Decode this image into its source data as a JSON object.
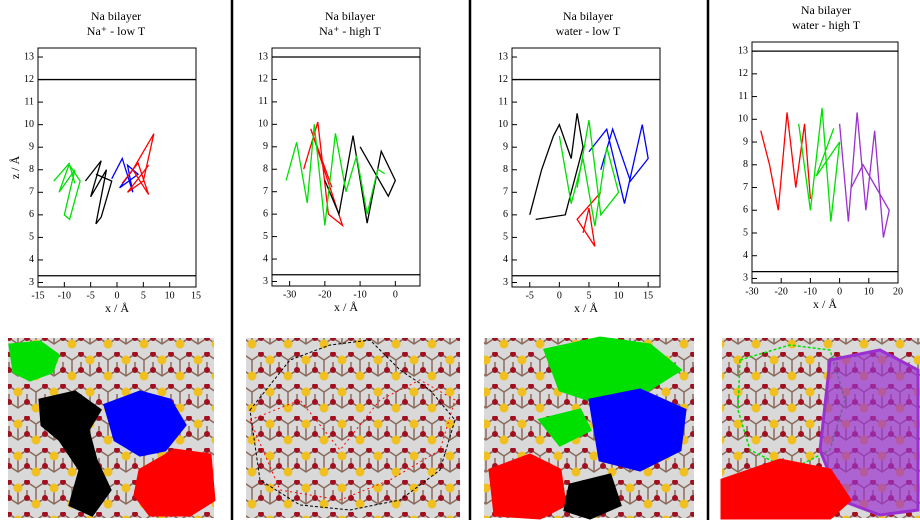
{
  "chart_data": [
    {
      "type": "line",
      "title": "Na bilayer",
      "subtitle": "Na⁺ - low T",
      "xlabel": "x / Å",
      "ylabel": "z / Å",
      "xlim": [
        -15,
        15
      ],
      "xticks": [
        -15,
        -10,
        -5,
        0,
        5,
        10,
        15
      ],
      "ylim": [
        2.8,
        13.4
      ],
      "yticks": [
        3,
        4,
        5,
        6,
        7,
        8,
        9,
        10,
        11,
        12,
        13
      ],
      "hlines": [
        12,
        3.3
      ],
      "series": [
        {
          "color": "#00e000",
          "x": [
            -12,
            -9,
            -11,
            -8,
            -10,
            -9,
            -7,
            -9,
            -8
          ],
          "values": [
            7.5,
            8.3,
            7,
            8,
            6,
            5.8,
            7.5,
            8.2,
            7.4
          ]
        },
        {
          "color": "#000000",
          "x": [
            -6,
            -3,
            -5,
            -2,
            -4,
            -3,
            -1,
            -4
          ],
          "values": [
            7.5,
            8.4,
            6.8,
            8,
            5.6,
            5.9,
            7.5,
            7.8
          ]
        },
        {
          "color": "#0000ff",
          "x": [
            -1,
            1,
            3,
            2,
            4,
            0.5,
            3
          ],
          "values": [
            7.6,
            8.5,
            7,
            8.2,
            7.8,
            7.2,
            8
          ]
        },
        {
          "color": "#ff0000",
          "x": [
            1,
            4,
            6,
            3,
            7,
            5,
            2,
            6
          ],
          "values": [
            7.4,
            8.3,
            6.9,
            8,
            9.6,
            7.5,
            7,
            8.2
          ]
        }
      ]
    },
    {
      "type": "line",
      "title": "Na bilayer",
      "subtitle": "Na⁺ - high T",
      "xlabel": "x / Å",
      "xlim": [
        -35,
        7
      ],
      "xticks": [
        -30,
        -20,
        -10,
        0
      ],
      "ylim": [
        2.8,
        13.4
      ],
      "yticks": [
        3,
        4,
        5,
        6,
        7,
        8,
        9,
        10,
        11,
        12,
        13
      ],
      "hlines": [
        13,
        3.3
      ],
      "series": [
        {
          "color": "#ff0000",
          "x": [
            -26,
            -22,
            -19,
            -15,
            -24,
            -18
          ],
          "values": [
            8,
            10.1,
            6,
            5.5,
            9.8,
            7.2
          ]
        },
        {
          "color": "#000000",
          "x": [
            -20,
            -16,
            -12,
            -8,
            -4,
            0,
            -2,
            -10
          ],
          "values": [
            7.5,
            6,
            9.5,
            5.6,
            8.8,
            7.5,
            6.8,
            9
          ]
        },
        {
          "color": "#00e000",
          "x": [
            -31,
            -28,
            -25,
            -23,
            -20,
            -17,
            -14,
            -11,
            -8,
            -5,
            -3
          ],
          "values": [
            7.5,
            9.2,
            6.5,
            10,
            5.5,
            9.6,
            7,
            8.6,
            6,
            8,
            7.8
          ]
        }
      ]
    },
    {
      "type": "line",
      "title": "Na bilayer",
      "subtitle": "water - low T",
      "xlabel": "x / Å",
      "xlim": [
        -8,
        17
      ],
      "xticks": [
        -5,
        0,
        5,
        10,
        15
      ],
      "ylim": [
        2.8,
        13.4
      ],
      "yticks": [
        3,
        4,
        5,
        6,
        7,
        8,
        9,
        10,
        11,
        12,
        13
      ],
      "hlines": [
        12,
        3.3
      ],
      "series": [
        {
          "color": "#000000",
          "x": [
            -5,
            -3,
            -1,
            0,
            2,
            3,
            4,
            1,
            -4
          ],
          "values": [
            6,
            8,
            9.5,
            10,
            8.5,
            10.5,
            9,
            6,
            5.8
          ]
        },
        {
          "color": "#0000ff",
          "x": [
            5,
            8,
            11,
            14,
            15,
            12,
            9,
            7
          ],
          "values": [
            8.8,
            9.8,
            6.5,
            10,
            8.5,
            7.5,
            9.8,
            8
          ]
        },
        {
          "color": "#ff0000",
          "x": [
            4,
            5,
            6,
            3,
            7
          ],
          "values": [
            5.2,
            6.3,
            4.6,
            5.8,
            7
          ]
        },
        {
          "color": "#00e000",
          "x": [
            0,
            2,
            4,
            6,
            8,
            10,
            7,
            5,
            3
          ],
          "values": [
            9.5,
            6.5,
            8.5,
            5.5,
            9,
            7,
            6,
            10.2,
            7.2
          ]
        }
      ]
    },
    {
      "type": "line",
      "title": "Na bilayer",
      "subtitle": "water - high T",
      "xlabel": "x / Å",
      "xlim": [
        -30,
        20
      ],
      "xticks": [
        -30,
        -20,
        -10,
        0,
        10,
        20
      ],
      "ylim": [
        2.8,
        13.4
      ],
      "yticks": [
        3,
        4,
        5,
        6,
        7,
        8,
        9,
        10,
        11,
        12,
        13
      ],
      "hlines": [
        13,
        3.3
      ],
      "series": [
        {
          "color": "#ff0000",
          "x": [
            -27,
            -24,
            -21,
            -18,
            -15,
            -12,
            -10
          ],
          "values": [
            9.5,
            8,
            6,
            10.3,
            7,
            9.8,
            6.5
          ]
        },
        {
          "color": "#00e000",
          "x": [
            -14,
            -10,
            -6,
            -3,
            0,
            -8,
            -2
          ],
          "values": [
            9.8,
            6,
            10.5,
            5.5,
            9,
            7.5,
            9.6
          ]
        },
        {
          "color": "#9b30d0",
          "x": [
            0,
            3,
            6,
            9,
            12,
            15,
            17,
            8,
            4
          ],
          "values": [
            9.8,
            5.5,
            10.3,
            6,
            9.5,
            4.8,
            6,
            8,
            7
          ]
        }
      ]
    }
  ]
}
